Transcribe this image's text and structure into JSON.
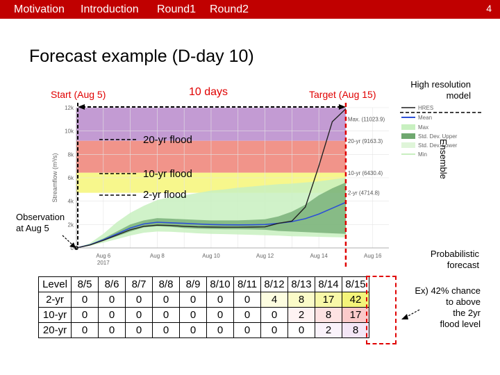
{
  "nav": {
    "items": [
      "Motivation",
      "Introduction",
      "Round1",
      "Round2"
    ],
    "active": "Introduction",
    "page_number": "4"
  },
  "title": "Forecast example (D-day 10)",
  "annotations": {
    "start": "Start (Aug 5)",
    "days": "10 days",
    "target": "Target (Aug 15)",
    "hres_model": [
      "High resolution",
      "model"
    ],
    "ensemble": "Ensemble",
    "flood_20": "20-yr flood",
    "flood_10": "10-yr flood",
    "flood_2": "2-yr flood",
    "observation": [
      "Observation",
      "at Aug 5"
    ],
    "probabilistic": [
      "Probabilistic",
      "forecast"
    ],
    "example": [
      "Ex) 42% chance",
      "to above",
      "the 2yr",
      "flood level"
    ]
  },
  "chart_data": {
    "type": "area",
    "ylabel": "Streamflow (m³/s)",
    "ylim": [
      0,
      12000
    ],
    "yticks": [
      "0",
      "2k",
      "4k",
      "6k",
      "8k",
      "10k",
      "12k"
    ],
    "xticks": [
      "Aug 6",
      "Aug 8",
      "Aug 10",
      "Aug 12",
      "Aug 14",
      "Aug 16"
    ],
    "x_year_label": "2017",
    "xlim": [
      5.0,
      16.6
    ],
    "thresholds": [
      {
        "label": "Max. (11023.9)",
        "value": 11023.9
      },
      {
        "label": "20-yr (9163.3)",
        "value": 9163.3
      },
      {
        "label": "10-yr (6430.4)",
        "value": 6430.4
      },
      {
        "label": "2-yr (4714.8)",
        "value": 4714.8
      }
    ],
    "legend": [
      "HRES",
      "Mean",
      "Max",
      "Std. Dev. Upper",
      "Std. Dev. Lower",
      "Min"
    ],
    "colors": {
      "purple": "#c39bd3",
      "red": "#f1948a",
      "yellow": "#f7f78c",
      "hres": "#222222",
      "mean": "#2c4fd6",
      "max": "#c8f0c0",
      "std": "#6fa86f",
      "min": "#dff5d9"
    },
    "x": [
      5,
      5.5,
      6,
      6.5,
      7,
      7.5,
      8,
      8.5,
      9,
      9.5,
      10,
      10.5,
      11,
      11.5,
      12,
      12.5,
      13,
      13.5,
      14,
      14.5,
      15
    ],
    "series": [
      {
        "name": "HRES",
        "values": [
          0,
          250,
          650,
          1100,
          1550,
          1850,
          1950,
          1920,
          1850,
          1800,
          1780,
          1770,
          1770,
          1780,
          1800,
          2100,
          2300,
          3500,
          7000,
          10800,
          11900
        ]
      },
      {
        "name": "Mean",
        "values": [
          0,
          270,
          700,
          1200,
          1700,
          2050,
          2200,
          2150,
          2100,
          2050,
          2000,
          1980,
          1970,
          1980,
          2000,
          2100,
          2250,
          2500,
          2900,
          3400,
          3900
        ]
      },
      {
        "name": "Max",
        "values": [
          0,
          400,
          1200,
          2200,
          3000,
          3600,
          4100,
          4350,
          4500,
          4700,
          4900,
          5000,
          5150,
          5250,
          5350,
          5450,
          5500,
          5600,
          5700,
          5850,
          6000
        ]
      },
      {
        "name": "Std. Dev. Upper",
        "values": [
          0,
          300,
          800,
          1400,
          2000,
          2350,
          2550,
          2500,
          2450,
          2400,
          2350,
          2350,
          2350,
          2400,
          2450,
          2700,
          3100,
          3700,
          4500,
          5100,
          5600
        ]
      },
      {
        "name": "Std. Dev. Lower",
        "values": [
          0,
          230,
          600,
          1000,
          1400,
          1750,
          1850,
          1800,
          1700,
          1650,
          1620,
          1600,
          1600,
          1580,
          1550,
          1450,
          1400,
          1350,
          1300,
          1250,
          1200
        ]
      },
      {
        "name": "Min",
        "values": [
          0,
          180,
          450,
          750,
          1050,
          1300,
          1400,
          1380,
          1320,
          1250,
          1200,
          1180,
          1150,
          1120,
          1080,
          1050,
          1000,
          980,
          950,
          920,
          900
        ]
      }
    ]
  },
  "table": {
    "header": [
      "Level",
      "8/5",
      "8/6",
      "8/7",
      "8/8",
      "8/9",
      "8/10",
      "8/11",
      "8/12",
      "8/13",
      "8/14",
      "8/15"
    ],
    "rows": [
      {
        "cells": [
          "2-yr",
          "0",
          "0",
          "0",
          "0",
          "0",
          "0",
          "0",
          "4",
          "8",
          "17",
          "42"
        ],
        "bg": [
          "",
          "",
          "",
          "",
          "",
          "",
          "",
          "",
          "#fdfde0",
          "#fbfbc8",
          "#f8f8a8",
          "#f4f47a"
        ]
      },
      {
        "cells": [
          "10-yr",
          "0",
          "0",
          "0",
          "0",
          "0",
          "0",
          "0",
          "0",
          "2",
          "8",
          "17"
        ],
        "bg": [
          "",
          "",
          "",
          "",
          "",
          "",
          "",
          "",
          "",
          "#fef3f3",
          "#fde2e2",
          "#fbcaca"
        ]
      },
      {
        "cells": [
          "20-yr",
          "0",
          "0",
          "0",
          "0",
          "0",
          "0",
          "0",
          "0",
          "0",
          "2",
          "8"
        ],
        "bg": [
          "",
          "",
          "",
          "",
          "",
          "",
          "",
          "",
          "",
          "",
          "#faf3fb",
          "#f4e6f6"
        ]
      }
    ]
  }
}
